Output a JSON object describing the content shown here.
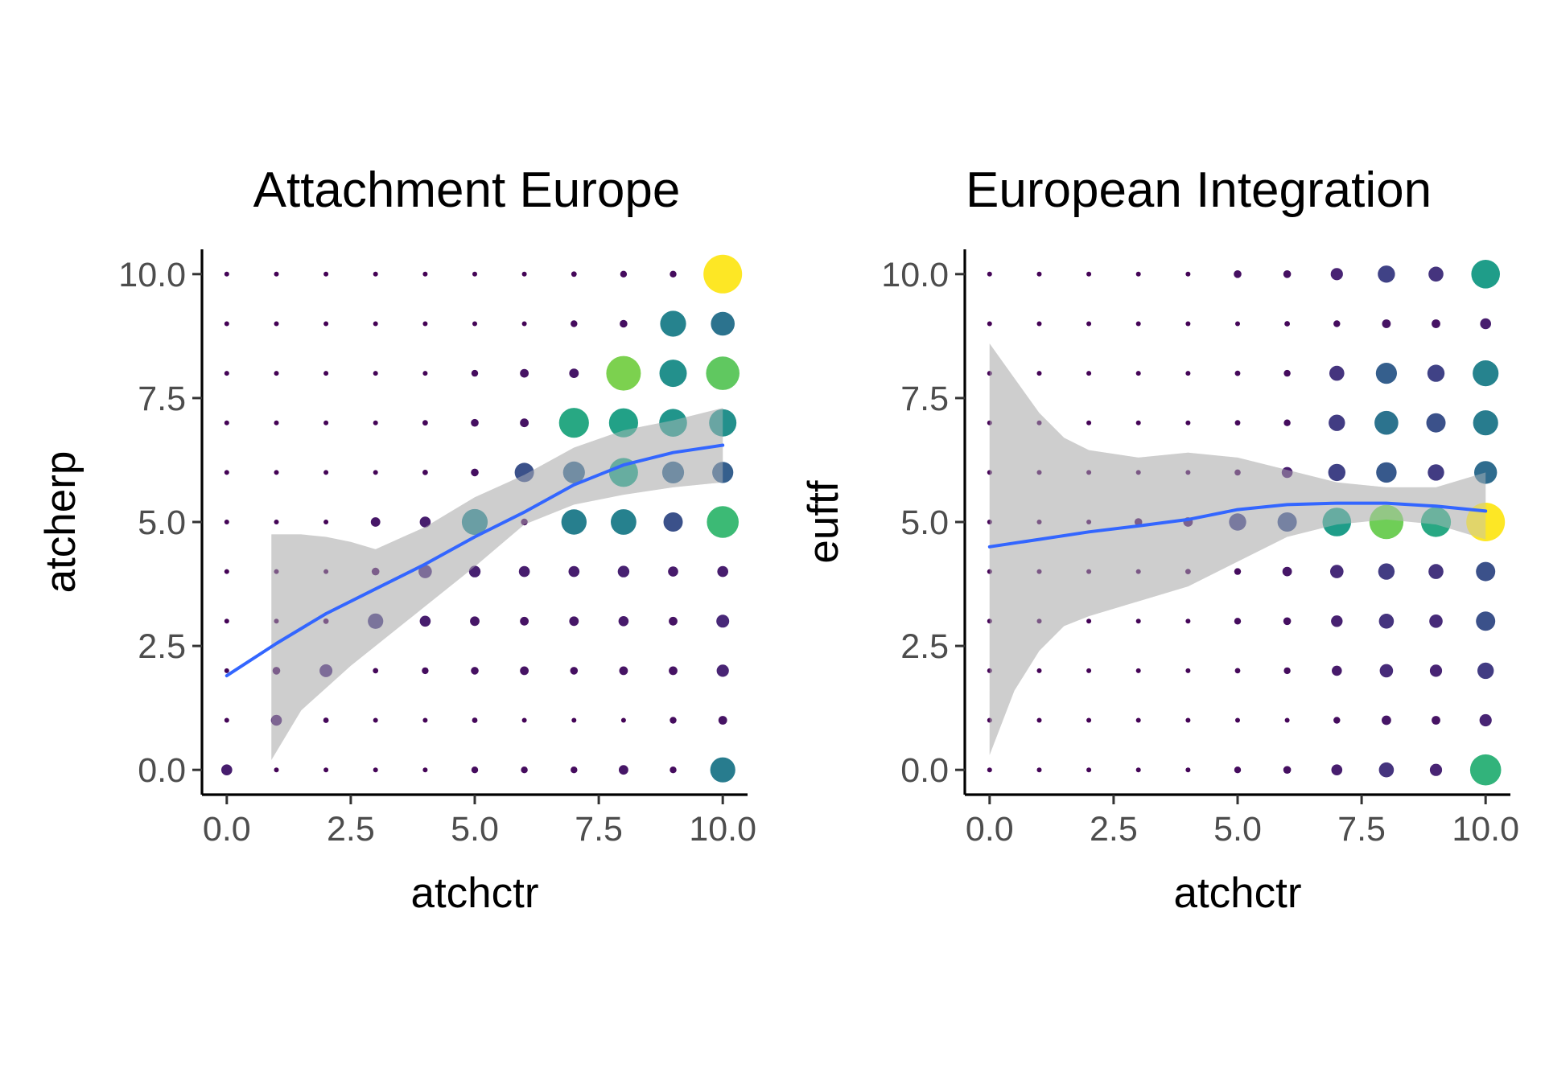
{
  "chart_data": [
    {
      "type": "scatter",
      "title": "Attachment Europe",
      "xlabel": "atchctr",
      "ylabel": "atcherp",
      "xlim": [
        -0.5,
        10.5
      ],
      "ylim": [
        -0.5,
        10.5
      ],
      "xticks": [
        "0.0",
        "2.5",
        "5.0",
        "7.5",
        "10.0"
      ],
      "yticks": [
        "0.0",
        "2.5",
        "5.0",
        "7.5",
        "10.0"
      ],
      "grid": false,
      "legend": "none",
      "point_size_max": 24,
      "point_color_scale": "viridis",
      "count_grid_rows_y10_to_y0": [
        [
          1,
          0.3,
          0.3,
          0.4,
          0.4,
          1,
          1,
          2,
          3,
          3,
          100
        ],
        [
          0.3,
          0.3,
          0.3,
          0.4,
          0.4,
          1,
          1,
          3,
          4,
          45,
          38
        ],
        [
          1,
          0.3,
          0.7,
          1,
          1,
          3,
          5,
          6,
          80,
          50,
          75
        ],
        [
          0.7,
          0.3,
          1,
          1,
          2,
          4,
          5,
          60,
          57,
          52,
          50
        ],
        [
          0.7,
          0.3,
          1,
          1,
          2,
          4,
          25,
          32,
          56,
          32,
          30
        ],
        [
          1,
          1,
          1,
          6,
          8,
          45,
          3,
          43,
          44,
          25,
          68
        ],
        [
          0.7,
          1,
          1,
          4,
          12,
          9,
          8,
          8,
          9,
          7,
          8
        ],
        [
          0.7,
          1,
          2,
          16,
          8,
          6,
          5,
          6,
          7,
          5,
          11
        ],
        [
          1,
          4,
          11,
          2,
          3,
          4,
          5,
          4,
          5,
          5,
          10
        ],
        [
          1,
          8,
          2,
          1,
          1,
          2,
          1,
          1,
          1,
          3,
          5
        ],
        [
          8,
          1,
          1,
          1,
          1,
          3,
          3,
          3,
          6,
          3,
          42
        ]
      ],
      "smooth_line": {
        "color": "#3366FF",
        "x": [
          0,
          1,
          2,
          3,
          4,
          5,
          6,
          7,
          8,
          9,
          10
        ],
        "y": [
          1.9,
          2.55,
          3.15,
          3.65,
          4.15,
          4.7,
          5.2,
          5.75,
          6.15,
          6.4,
          6.55
        ]
      },
      "confidence_band": {
        "color": "#d9d9d9",
        "x": [
          0.9,
          1.5,
          2,
          2.5,
          3,
          4,
          5,
          6,
          7,
          8,
          9,
          10
        ],
        "lower": [
          0.2,
          1.2,
          1.65,
          2.1,
          2.5,
          3.3,
          4.1,
          4.95,
          5.35,
          5.55,
          5.7,
          5.8
        ],
        "upper": [
          4.75,
          4.75,
          4.7,
          4.6,
          4.45,
          4.9,
          5.5,
          5.95,
          6.5,
          6.85,
          7.05,
          7.3
        ]
      }
    },
    {
      "type": "scatter",
      "title": "European Integration",
      "xlabel": "atchctr",
      "ylabel": "euftf",
      "xlim": [
        -0.5,
        10.5
      ],
      "ylim": [
        -0.5,
        10.5
      ],
      "xticks": [
        "0.0",
        "2.5",
        "5.0",
        "7.5",
        "10.0"
      ],
      "yticks": [
        "0.0",
        "2.5",
        "5.0",
        "7.5",
        "10.0"
      ],
      "grid": false,
      "legend": "none",
      "point_size_max": 24,
      "point_color_scale": "viridis",
      "count_grid_rows_y10_to_y0": [
        [
          1,
          0.7,
          0.7,
          0.9,
          1,
          4,
          4,
          10,
          20,
          15,
          55
        ],
        [
          0.3,
          0.3,
          0.5,
          0.5,
          0.5,
          1.5,
          2,
          3,
          5,
          5,
          8
        ],
        [
          0.5,
          0.5,
          0.5,
          0.7,
          1,
          2,
          3,
          15,
          30,
          20,
          45
        ],
        [
          0.5,
          0.5,
          0.5,
          0.7,
          1,
          2,
          3,
          18,
          38,
          25,
          42
        ],
        [
          0.5,
          0.5,
          0.7,
          1,
          1.5,
          2.5,
          8,
          20,
          28,
          18,
          35
        ],
        [
          1,
          1,
          1.5,
          4,
          6,
          20,
          25,
          55,
          78,
          60,
          100
        ],
        [
          0.5,
          0.5,
          0.7,
          1.2,
          2,
          3,
          6,
          12,
          18,
          15,
          25
        ],
        [
          0.5,
          0.5,
          0.7,
          1,
          1.5,
          3,
          4,
          9,
          15,
          12,
          25
        ],
        [
          0.5,
          0.5,
          0.5,
          0.7,
          1,
          2,
          3,
          7,
          12,
          10,
          18
        ],
        [
          0.3,
          0.3,
          0.4,
          0.5,
          0.6,
          1,
          1.5,
          3,
          6,
          5,
          10
        ],
        [
          1,
          1,
          1,
          1,
          1.2,
          3,
          4,
          8,
          15,
          10,
          65
        ]
      ],
      "smooth_line": {
        "color": "#3366FF",
        "x": [
          0,
          1,
          2,
          3,
          4,
          5,
          6,
          7,
          8,
          9,
          10
        ],
        "y": [
          4.5,
          4.65,
          4.8,
          4.92,
          5.05,
          5.25,
          5.35,
          5.38,
          5.38,
          5.32,
          5.22
        ]
      },
      "confidence_band": {
        "color": "#d9d9d9",
        "x": [
          0,
          0.5,
          1,
          1.5,
          2,
          3,
          4,
          5,
          6,
          7,
          8,
          9,
          10
        ],
        "lower": [
          0.3,
          1.6,
          2.4,
          2.9,
          3.1,
          3.4,
          3.7,
          4.2,
          4.7,
          4.95,
          5.05,
          4.95,
          4.65
        ],
        "upper": [
          8.6,
          7.9,
          7.2,
          6.7,
          6.45,
          6.3,
          6.4,
          6.3,
          6.05,
          5.8,
          5.7,
          5.7,
          6.0
        ]
      }
    }
  ]
}
